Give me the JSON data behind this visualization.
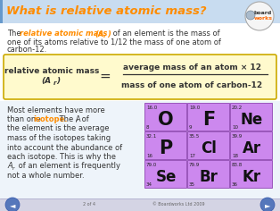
{
  "title": "What is relative atomic mass?",
  "title_color": "#FF8C00",
  "header_bg": "#C8DCF0",
  "header_left_border": "#6699CC",
  "body_bg": "#FFFFFF",
  "formula_bg": "#FFFACD",
  "formula_border": "#CCAA00",
  "footer_bg": "#D8D8E8",
  "orange": "#FF8C00",
  "dark": "#333333",
  "element_bg": "#CC88EE",
  "element_border": "#9955BB",
  "arrow_color": "#5577BB",
  "elements": [
    {
      "symbol": "O",
      "mass": "16.0",
      "number": "8",
      "row": 0,
      "col": 0
    },
    {
      "symbol": "F",
      "mass": "19.0",
      "number": "9",
      "row": 0,
      "col": 1
    },
    {
      "symbol": "Ne",
      "mass": "20.2",
      "number": "10",
      "row": 0,
      "col": 2
    },
    {
      "symbol": "P",
      "mass": "32.1",
      "number": "16",
      "row": 1,
      "col": 0
    },
    {
      "symbol": "Cl",
      "mass": "35.5",
      "number": "17",
      "row": 1,
      "col": 1
    },
    {
      "symbol": "Ar",
      "mass": "39.9",
      "number": "18",
      "row": 1,
      "col": 2
    },
    {
      "symbol": "Se",
      "mass": "79.0",
      "number": "34",
      "row": 2,
      "col": 0
    },
    {
      "symbol": "Br",
      "mass": "79.9",
      "number": "35",
      "row": 2,
      "col": 1
    },
    {
      "symbol": "Kr",
      "mass": "83.8",
      "number": "36",
      "row": 2,
      "col": 2
    }
  ]
}
